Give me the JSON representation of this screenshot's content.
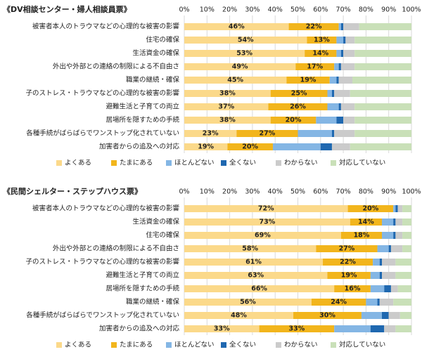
{
  "chart_data": [
    {
      "type": "bar",
      "orientation": "horizontal",
      "stacked": true,
      "title": "《DV相談センター・婦人相談員票》",
      "categories": [
        "被害者本人のトラウマなどの心理的な被害の影響",
        "住宅の確保",
        "生活資金の確保",
        "外出や外部との連絡の制限による不自由さ",
        "職業の継続・確保",
        "子のストレス・トラウマなどの心理的な被害の影響",
        "避難生活と子育ての両立",
        "居場所を隠すための手続",
        "各種手続がばらばらでワンストップ化されていない",
        "加害者からの追及への対応"
      ],
      "series": [
        {
          "name": "よくある",
          "color": "#fbd98a",
          "values": [
            46,
            54,
            53,
            49,
            45,
            38,
            37,
            38,
            23,
            19
          ],
          "value_labels": [
            "46%",
            "54%",
            "53%",
            "49%",
            "45%",
            "38%",
            "37%",
            "38%",
            "23%",
            "19%"
          ]
        },
        {
          "name": "たまにある",
          "color": "#f2b51c",
          "values": [
            22,
            13,
            14,
            17,
            19,
            25,
            26,
            20,
            27,
            20
          ],
          "value_labels": [
            "22%",
            "13%",
            "14%",
            "17%",
            "19%",
            "25%",
            "26%",
            "20%",
            "27%",
            "20%"
          ]
        },
        {
          "name": "ほとんどない",
          "color": "#84b6e4",
          "values": [
            1,
            3,
            2,
            2,
            3,
            2,
            5,
            9,
            15,
            21
          ]
        },
        {
          "name": "全くない",
          "color": "#1f68b0",
          "values": [
            1,
            1,
            1,
            1,
            1,
            1,
            1,
            3,
            1,
            5
          ]
        },
        {
          "name": "わからない",
          "color": "#cbcbcb",
          "values": [
            7,
            4,
            5,
            6,
            6,
            7,
            6,
            5,
            9,
            8
          ]
        },
        {
          "name": "対応していない",
          "color": "#c9e0b8",
          "values": [
            23,
            25,
            25,
            25,
            26,
            27,
            25,
            25,
            25,
            27
          ]
        }
      ],
      "xlim": [
        0,
        100
      ],
      "xticks": [
        {
          "value": 0,
          "label": "0%"
        },
        {
          "value": 10,
          "label": "10%"
        },
        {
          "value": 20,
          "label": "20%"
        },
        {
          "value": 30,
          "label": "30%"
        },
        {
          "value": 40,
          "label": "40%"
        },
        {
          "value": 50,
          "label": "50%"
        },
        {
          "value": 60,
          "label": "60%"
        },
        {
          "value": 70,
          "label": "70%"
        },
        {
          "value": 80,
          "label": "80%"
        },
        {
          "value": 90,
          "label": "90%"
        },
        {
          "value": 100,
          "label": "100%"
        }
      ],
      "grid": true,
      "legend": "bottom"
    },
    {
      "type": "bar",
      "orientation": "horizontal",
      "stacked": true,
      "title": "《民間シェルター・ステップハウス票》",
      "categories": [
        "被害者本人のトラウマなどの心理的な被害の影響",
        "生活資金の確保",
        "住宅の確保",
        "外出や外部との連絡の制限による不自由さ",
        "子のストレス・トラウマなどの心理的な被害の影響",
        "避難生活と子育ての両立",
        "居場所を隠すための手続",
        "職業の継続・確保",
        "各種手続がばらばらでワンストップ化されていない",
        "加害者からの追及への対応"
      ],
      "series": [
        {
          "name": "よくある",
          "color": "#fbd98a",
          "values": [
            72,
            73,
            69,
            58,
            61,
            63,
            66,
            56,
            48,
            33
          ],
          "value_labels": [
            "72%",
            "73%",
            "69%",
            "58%",
            "61%",
            "63%",
            "66%",
            "56%",
            "48%",
            "33%"
          ]
        },
        {
          "name": "たまにある",
          "color": "#f2b51c",
          "values": [
            20,
            14,
            18,
            27,
            22,
            19,
            16,
            24,
            30,
            33
          ],
          "value_labels": [
            "20%",
            "14%",
            "18%",
            "27%",
            "22%",
            "19%",
            "16%",
            "24%",
            "30%",
            "33%"
          ]
        },
        {
          "name": "ほとんどない",
          "color": "#84b6e4",
          "values": [
            1,
            5,
            5,
            5,
            3,
            4,
            6,
            5,
            9,
            16
          ]
        },
        {
          "name": "全くない",
          "color": "#1f68b0",
          "values": [
            1,
            1,
            1,
            1,
            1,
            1,
            3,
            1,
            3,
            6
          ]
        },
        {
          "name": "わからない",
          "color": "#cbcbcb",
          "values": [
            2,
            3,
            3,
            5,
            6,
            6,
            3,
            6,
            5,
            5
          ]
        },
        {
          "name": "対応していない",
          "color": "#c9e0b8",
          "values": [
            4,
            4,
            4,
            4,
            7,
            7,
            6,
            8,
            5,
            7
          ]
        }
      ],
      "xlim": [
        0,
        100
      ],
      "xticks": [
        {
          "value": 0,
          "label": "0%"
        },
        {
          "value": 10,
          "label": "10%"
        },
        {
          "value": 20,
          "label": "20%"
        },
        {
          "value": 30,
          "label": "30%"
        },
        {
          "value": 40,
          "label": "40%"
        },
        {
          "value": 50,
          "label": "50%"
        },
        {
          "value": 60,
          "label": "60%"
        },
        {
          "value": 70,
          "label": "70%"
        },
        {
          "value": 80,
          "label": "80%"
        },
        {
          "value": 90,
          "label": "90%"
        },
        {
          "value": 100,
          "label": "100%"
        }
      ],
      "grid": true,
      "legend": "bottom"
    }
  ]
}
